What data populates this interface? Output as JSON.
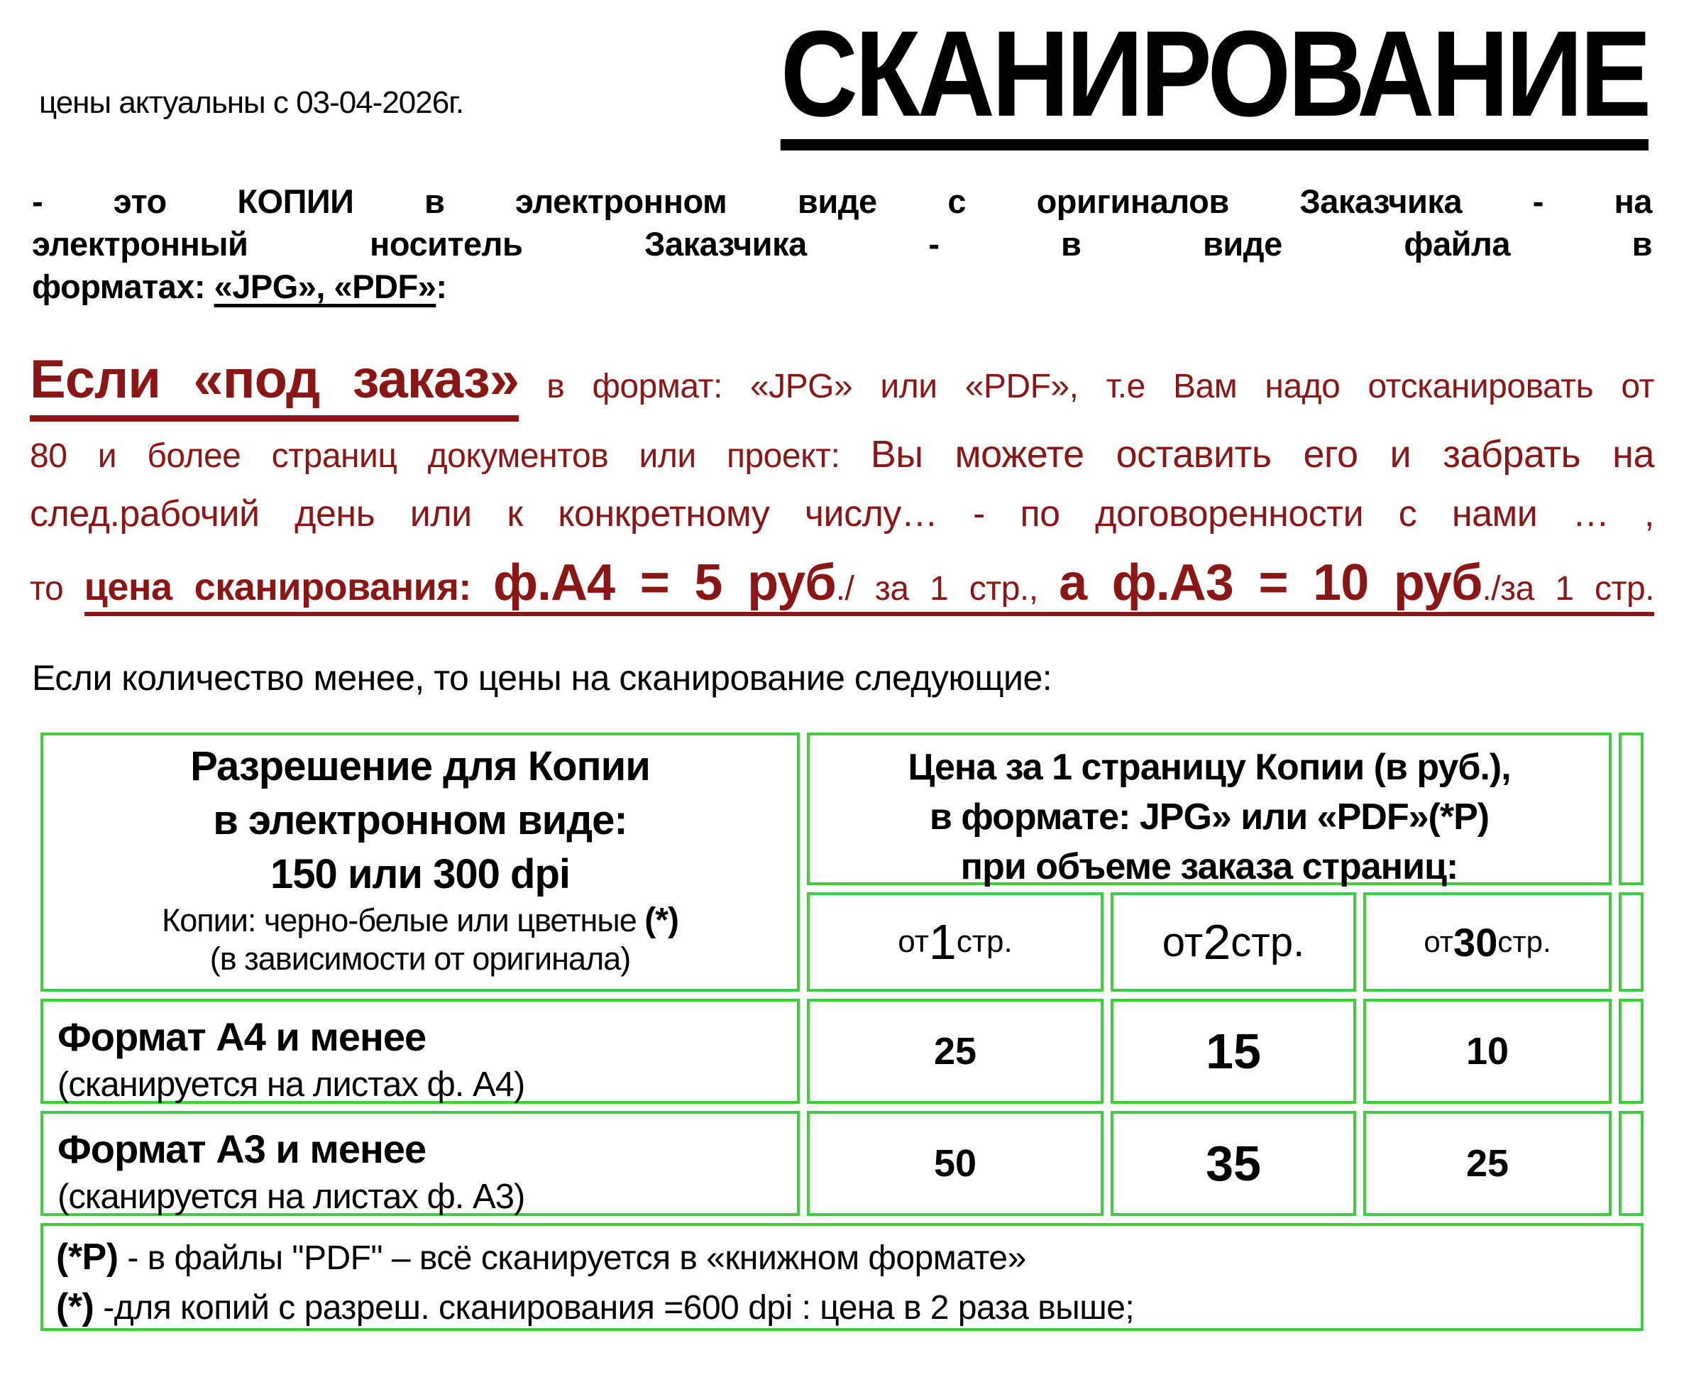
{
  "colors": {
    "accent_red": "#8B1616",
    "table_border_green": "#3ECD3E",
    "text_black": "#000000"
  },
  "header": {
    "price_note": "цены актуальны с 03-04-2026г.",
    "title": "СКАНИРОВАНИЕ"
  },
  "intro": {
    "line1": "- это КОПИИ в электронном виде с оригиналов Заказчика - на",
    "line2": "электронный носитель Заказчика - в виде файла в",
    "line3_prefix": "форматах: ",
    "line3_underlined": "«JPG», «PDF»",
    "line3_suffix": ":"
  },
  "order_section": {
    "heading": "Если «под заказ»",
    "heading_rest": " в формат: «JPG» или «PDF»,  т.е Вам надо отсканировать от",
    "line2_small": "80 и более страниц документов или проект: ",
    "line2_big": "Вы можете оставить его и забрать на",
    "line3": "след.рабочий день или к конкретному числу… - по договоренности с нами … ,",
    "line4_prefix": "то ",
    "line4_label": "цена сканирования:  ",
    "line4_price_a4": "ф.А4 = 5 руб",
    "line4_a4_unit": "./ за 1 стр., ",
    "line4_price_a3": "а ф.А3 = 10 руб",
    "line4_a3_unit": "./за 1 стр."
  },
  "note_less": "Если количество менее, то цены на сканирование следующие:",
  "table": {
    "resolution_header": {
      "line1": "Разрешение для Копии",
      "line2": "в электронном виде:",
      "line3": "150 или 300 dpi",
      "line4_text": "Копии: черно-белые или цветные ",
      "line4_mark": "(*)",
      "line5": "(в зависимости от оригинала)"
    },
    "price_header": {
      "line1": "Цена за  1  страницу Копии (в руб.),",
      "line2": "в формате:  JPG» или  «PDF»(*Р)",
      "line3": "при объеме заказа страниц:"
    },
    "volume_columns": [
      {
        "prefix": "от ",
        "number": "1",
        "suffix": " стр."
      },
      {
        "prefix": "от ",
        "number": "2",
        "suffix": " стр."
      },
      {
        "prefix": "от ",
        "number": "30",
        "suffix": " стр."
      }
    ],
    "rows": [
      {
        "title": "Формат А4 и менее",
        "subtitle": "(сканируется на листах ф. А4)",
        "prices": [
          "25",
          "15",
          "10"
        ]
      },
      {
        "title": "Формат А3 и менее",
        "subtitle": "(сканируется на листах  ф. А3)",
        "prices": [
          "50",
          "35",
          "25"
        ]
      }
    ],
    "footnotes": [
      {
        "mark": "(*Р)",
        "text": " - в файлы \"PDF\" – всё сканируется в «книжном формате»"
      },
      {
        "mark": "(*)",
        "text": " -для копий с разреш. сканирования =600 dpi :  цена в 2 раза выше;"
      }
    ]
  }
}
